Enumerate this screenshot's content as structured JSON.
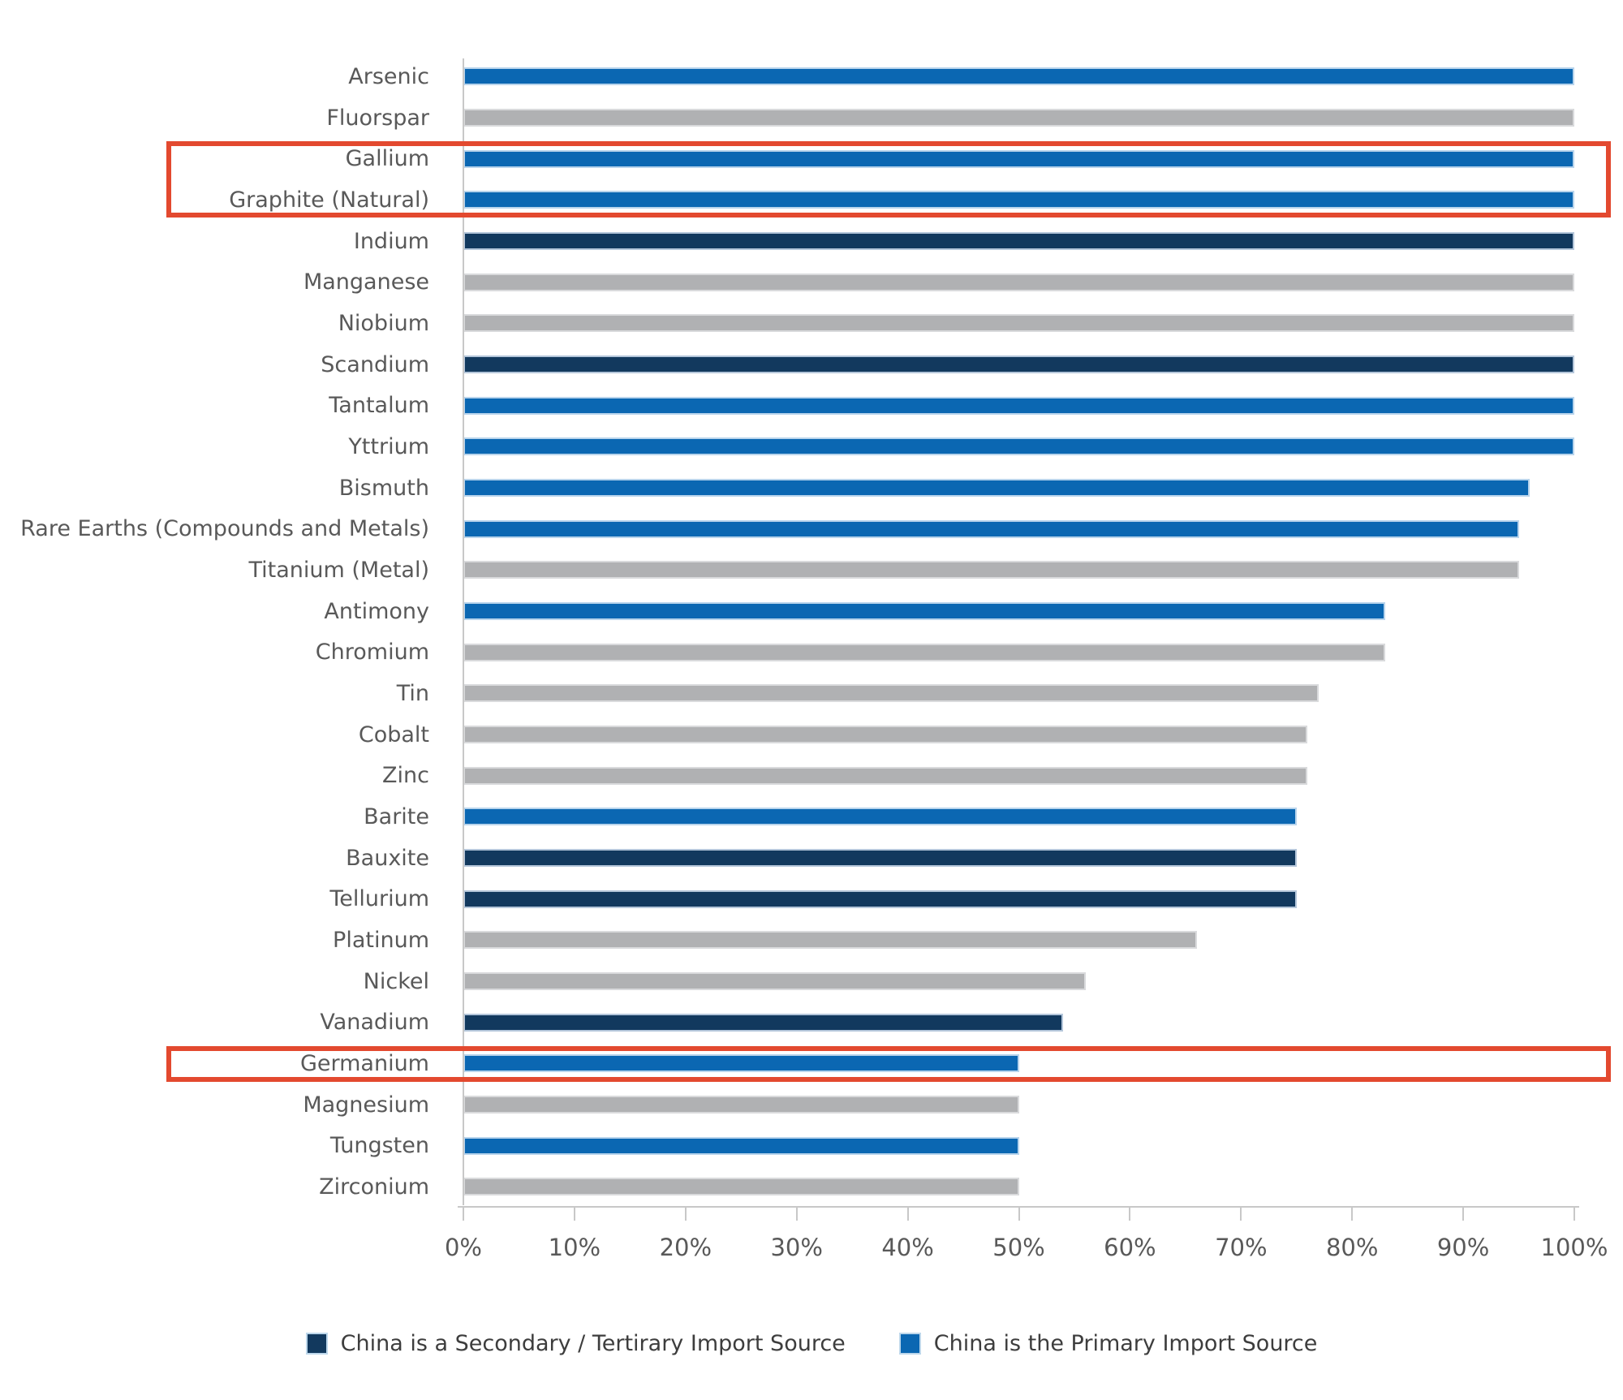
{
  "chart_data": {
    "type": "bar",
    "orientation": "horizontal",
    "title": "",
    "xlabel": "",
    "ylabel": "",
    "xlim": [
      0,
      100
    ],
    "grid": false,
    "legend_position": "bottom-center",
    "bars": [
      {
        "label": "Arsenic",
        "value": 100,
        "group": "primary"
      },
      {
        "label": "Fluorspar",
        "value": 100,
        "group": "other"
      },
      {
        "label": "Gallium",
        "value": 100,
        "group": "primary"
      },
      {
        "label": "Graphite (Natural)",
        "value": 100,
        "group": "primary"
      },
      {
        "label": "Indium",
        "value": 100,
        "group": "secondary"
      },
      {
        "label": "Manganese",
        "value": 100,
        "group": "other"
      },
      {
        "label": "Niobium",
        "value": 100,
        "group": "other"
      },
      {
        "label": "Scandium",
        "value": 100,
        "group": "secondary"
      },
      {
        "label": "Tantalum",
        "value": 100,
        "group": "primary"
      },
      {
        "label": "Yttrium",
        "value": 100,
        "group": "primary"
      },
      {
        "label": "Bismuth",
        "value": 96,
        "group": "primary"
      },
      {
        "label": "Rare Earths (Compounds and Metals)",
        "value": 95,
        "group": "primary"
      },
      {
        "label": "Titanium (Metal)",
        "value": 95,
        "group": "other"
      },
      {
        "label": "Antimony",
        "value": 83,
        "group": "primary"
      },
      {
        "label": "Chromium",
        "value": 83,
        "group": "other"
      },
      {
        "label": "Tin",
        "value": 77,
        "group": "other"
      },
      {
        "label": "Cobalt",
        "value": 76,
        "group": "other"
      },
      {
        "label": "Zinc",
        "value": 76,
        "group": "other"
      },
      {
        "label": "Barite",
        "value": 75,
        "group": "primary"
      },
      {
        "label": "Bauxite",
        "value": 75,
        "group": "secondary"
      },
      {
        "label": "Tellurium",
        "value": 75,
        "group": "secondary"
      },
      {
        "label": "Platinum",
        "value": 66,
        "group": "other"
      },
      {
        "label": "Nickel",
        "value": 56,
        "group": "other"
      },
      {
        "label": "Vanadium",
        "value": 54,
        "group": "secondary"
      },
      {
        "label": "Germanium",
        "value": 50,
        "group": "primary"
      },
      {
        "label": "Magnesium",
        "value": 50,
        "group": "other"
      },
      {
        "label": "Tungsten",
        "value": 50,
        "group": "primary"
      },
      {
        "label": "Zirconium",
        "value": 50,
        "group": "other"
      }
    ],
    "x_ticks": [
      {
        "value": 0,
        "label": "0%"
      },
      {
        "value": 10,
        "label": "10%"
      },
      {
        "value": 20,
        "label": "20%"
      },
      {
        "value": 30,
        "label": "30%"
      },
      {
        "value": 40,
        "label": "40%"
      },
      {
        "value": 50,
        "label": "50%"
      },
      {
        "value": 60,
        "label": "60%"
      },
      {
        "value": 70,
        "label": "70%"
      },
      {
        "value": 80,
        "label": "80%"
      },
      {
        "value": 90,
        "label": "90%"
      },
      {
        "value": 100,
        "label": "100%"
      }
    ],
    "legend": [
      {
        "label": "China is a Secondary / Tertirary Import Source",
        "group": "secondary",
        "color": "#12395E"
      },
      {
        "label": "China is the Primary Import Source",
        "group": "primary",
        "color": "#0B67B2"
      }
    ],
    "colors": {
      "primary": "#0B67B2",
      "secondary": "#12395E",
      "other": "#B0B1B3",
      "highlight_box": "#E3492F",
      "axis": "#C8C8C8",
      "label_text": "#595959"
    },
    "highlights": [
      {
        "labels": [
          "Gallium",
          "Graphite (Natural)"
        ]
      },
      {
        "labels": [
          "Germanium"
        ]
      }
    ]
  }
}
